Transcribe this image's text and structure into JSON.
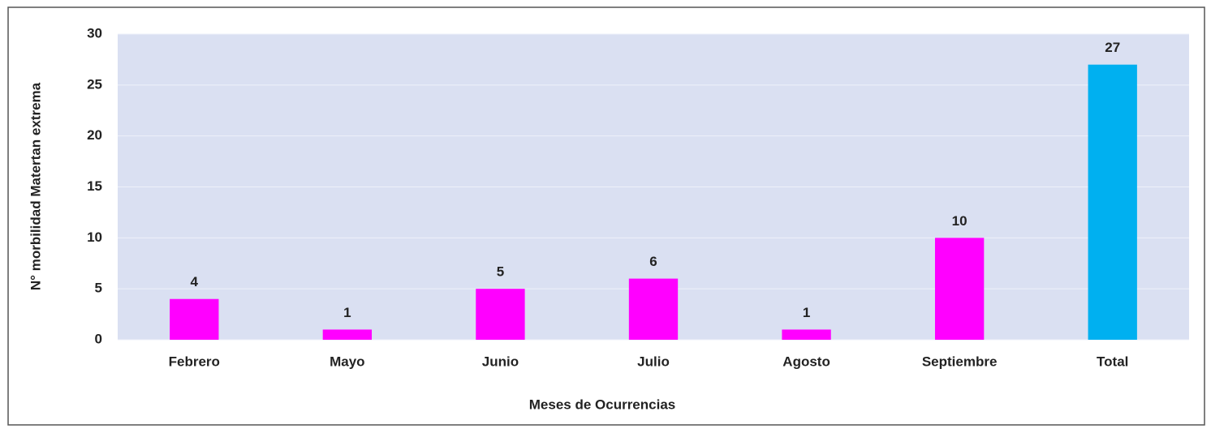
{
  "chart_data": {
    "type": "bar",
    "x_label": "Meses de Ocurrencias",
    "y_label": "N° morbilidad  Matertan extrema",
    "categories": [
      "Febrero",
      "Mayo",
      "Junio",
      "Julio",
      "Agosto",
      "Septiembre",
      "Total"
    ],
    "values": [
      4,
      1,
      5,
      6,
      1,
      10,
      27
    ],
    "colors": [
      "#ff00ff",
      "#ff00ff",
      "#ff00ff",
      "#ff00ff",
      "#ff00ff",
      "#ff00ff",
      "#00b0f0"
    ],
    "ylim": [
      0,
      30
    ],
    "yticks": [
      0,
      5,
      10,
      15,
      20,
      25,
      30
    ],
    "grid": true
  }
}
